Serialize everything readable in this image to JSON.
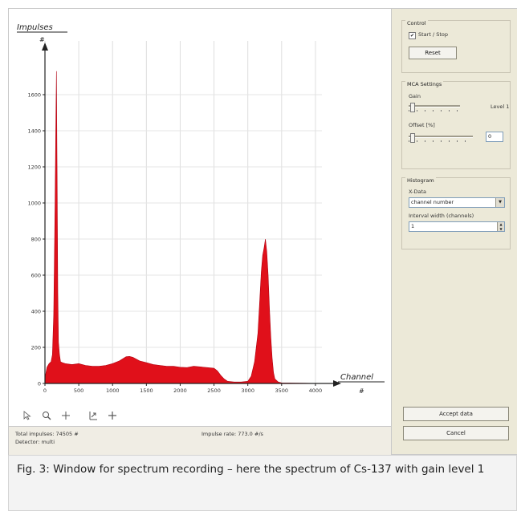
{
  "chart_data": {
    "type": "area",
    "title": "",
    "ylabel": "Impulses",
    "ylabel_symbol": "#",
    "xlabel": "Channel",
    "xlabel_symbol": "#",
    "xlim": [
      0,
      4096
    ],
    "ylim": [
      0,
      1800
    ],
    "grid": true,
    "x_ticks": [
      0,
      500,
      1000,
      1500,
      2000,
      2500,
      3000,
      3500,
      4000
    ],
    "x_tick_labels": [
      "0",
      "500",
      "1000",
      "1500",
      "2000",
      "2500",
      "3000",
      "3500",
      "4000"
    ],
    "y_ticks": [
      0,
      200,
      400,
      600,
      800,
      1000,
      1200,
      1400,
      1600
    ],
    "y_tick_labels": [
      "0",
      "200",
      "400",
      "600",
      "800",
      "1000",
      "1200",
      "1400",
      "1600"
    ],
    "fill_color": "#e0101a",
    "series": [
      {
        "x": [
          0,
          30,
          60,
          90,
          110,
          130,
          140,
          150,
          160,
          170,
          180,
          190,
          200,
          215,
          230,
          260,
          300,
          400,
          500,
          600,
          700,
          800,
          900,
          1000,
          1100,
          1200,
          1250,
          1300,
          1350,
          1400,
          1500,
          1600,
          1700,
          1800,
          1900,
          2000,
          2100,
          2200,
          2300,
          2400,
          2500,
          2550,
          2600,
          2650,
          2700,
          2800,
          2900,
          3000,
          3050,
          3100,
          3150,
          3180,
          3200,
          3220,
          3240,
          3260,
          3280,
          3300,
          3320,
          3340,
          3360,
          3380,
          3400,
          3450,
          3500,
          4096
        ],
        "y": [
          30,
          90,
          110,
          120,
          160,
          380,
          700,
          1000,
          1400,
          1730,
          1100,
          500,
          230,
          160,
          120,
          115,
          110,
          105,
          110,
          100,
          95,
          95,
          100,
          110,
          125,
          148,
          150,
          145,
          135,
          125,
          115,
          105,
          100,
          95,
          95,
          90,
          88,
          95,
          92,
          88,
          84,
          70,
          45,
          25,
          12,
          8,
          8,
          12,
          40,
          120,
          280,
          480,
          620,
          710,
          750,
          800,
          730,
          600,
          420,
          260,
          140,
          60,
          25,
          8,
          3,
          0
        ]
      }
    ]
  },
  "toolbar": {
    "icons": [
      "cursor-icon",
      "zoom-icon",
      "crosshair-icon",
      "zoom-fit-icon",
      "pan-icon"
    ]
  },
  "status": {
    "total_impulses": "Total impulses: 74505 #",
    "detector": "Detector: multi",
    "impulse_rate": "Impulse rate: 773.0 #/s"
  },
  "panel": {
    "control": {
      "title": "Control",
      "start_stop_label": "Start / Stop",
      "start_stop_checked": true,
      "reset_label": "Reset"
    },
    "mca": {
      "title": "MCA Settings",
      "gain_label": "Gain",
      "gain_value_label": "Level 1",
      "gain_fraction": 0.0,
      "offset_label": "Offset [%]",
      "offset_fraction": 0.0,
      "offset_value": "0"
    },
    "histogram": {
      "title": "Histogram",
      "xdata_label": "X-Data",
      "xdata_value": "channel number",
      "interval_label": "Interval width (channels)",
      "interval_value": "1"
    },
    "accept_label": "Accept data",
    "cancel_label": "Cancel"
  },
  "caption": "Fig. 3: Window for spectrum recording – here the spectrum of Cs-137 with gain level 1"
}
